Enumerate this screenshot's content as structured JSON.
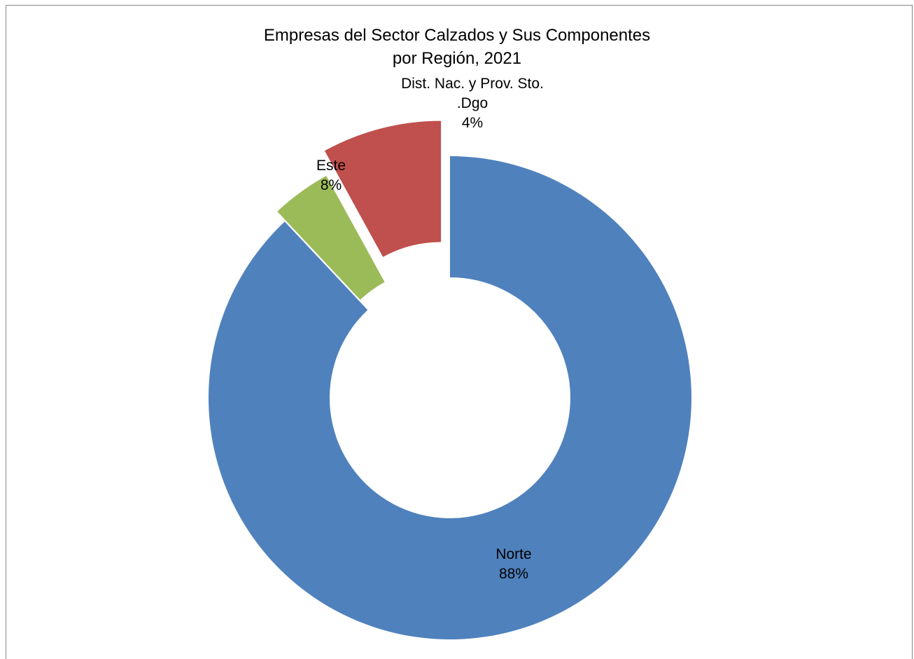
{
  "chart_data": {
    "type": "donut",
    "title": [
      "Empresas del Sector Calzados y Sus Componentes",
      "por Región, 2021"
    ],
    "slices": [
      {
        "label": [
          "Norte"
        ],
        "percent_label": "88%",
        "value": 88,
        "color": "#4F81BD",
        "exploded": false
      },
      {
        "label": [
          "Dist. Nac. y Prov. Sto.",
          ".Dgo"
        ],
        "percent_label": "4%",
        "value": 4,
        "color": "#9BBB59",
        "exploded": true
      },
      {
        "label": [
          "Este"
        ],
        "percent_label": "8%",
        "value": 8,
        "color": "#C0504D",
        "exploded": true
      }
    ],
    "legend": "none"
  }
}
